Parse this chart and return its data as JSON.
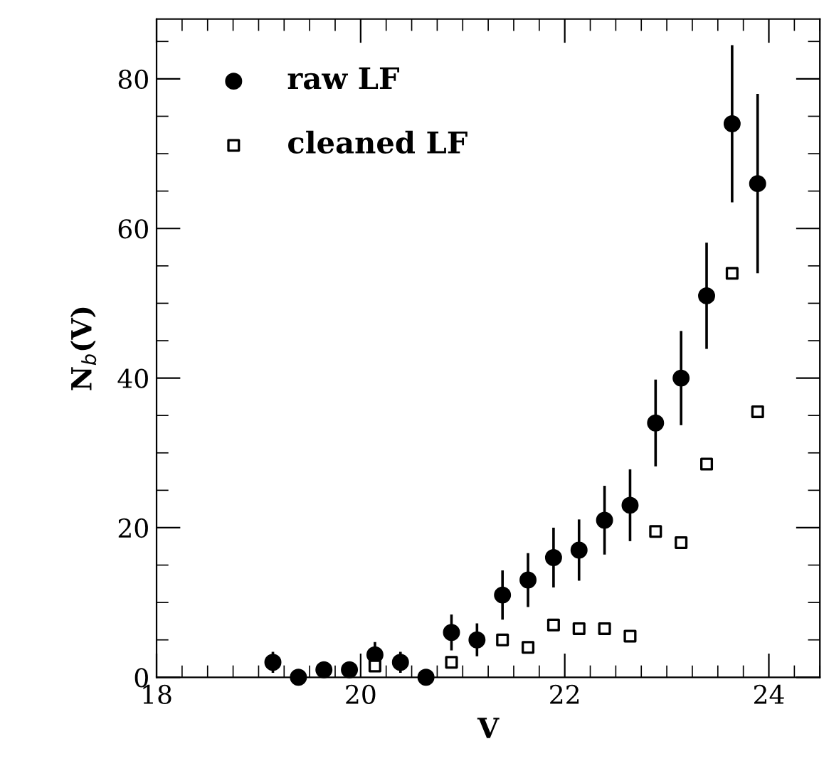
{
  "chart_data": {
    "type": "scatter",
    "xlabel": "V",
    "ylabel": "N$_{b}$(V)",
    "xlim": [
      18,
      24.5
    ],
    "ylim": [
      0,
      88
    ],
    "xticks": [
      18,
      20,
      22,
      24
    ],
    "yticks": [
      0,
      20,
      40,
      60,
      80
    ],
    "legend": "top left",
    "grid": false,
    "series": [
      {
        "name": "raw LF",
        "color": "#000000",
        "marker": "circle",
        "x": [
          19.14,
          19.39,
          19.64,
          19.89,
          20.14,
          20.39,
          20.64,
          20.89,
          21.14,
          21.39,
          21.64,
          21.89,
          22.14,
          22.39,
          22.64,
          22.89,
          23.14,
          23.39,
          23.64,
          23.89
        ],
        "values": [
          2,
          0,
          1,
          1,
          3,
          2,
          0,
          6,
          5,
          11,
          13,
          16,
          17,
          21,
          23,
          34,
          40,
          51,
          74,
          66
        ],
        "errors": [
          1.4,
          null,
          1,
          1,
          1.7,
          1.4,
          null,
          2.4,
          2.2,
          3.3,
          3.6,
          4,
          4.1,
          4.6,
          4.8,
          5.8,
          6.3,
          7.1,
          10.5,
          12
        ]
      },
      {
        "name": "cleaned LF",
        "color": "#000000",
        "marker": "square",
        "x": [
          20.14,
          20.89,
          21.39,
          21.64,
          21.89,
          22.14,
          22.39,
          22.64,
          22.89,
          23.14,
          23.39,
          23.64,
          23.89
        ],
        "values": [
          1.5,
          2,
          5,
          4,
          7,
          6.5,
          6.5,
          5.5,
          19.5,
          18,
          28.5,
          54,
          35.5
        ]
      }
    ]
  }
}
